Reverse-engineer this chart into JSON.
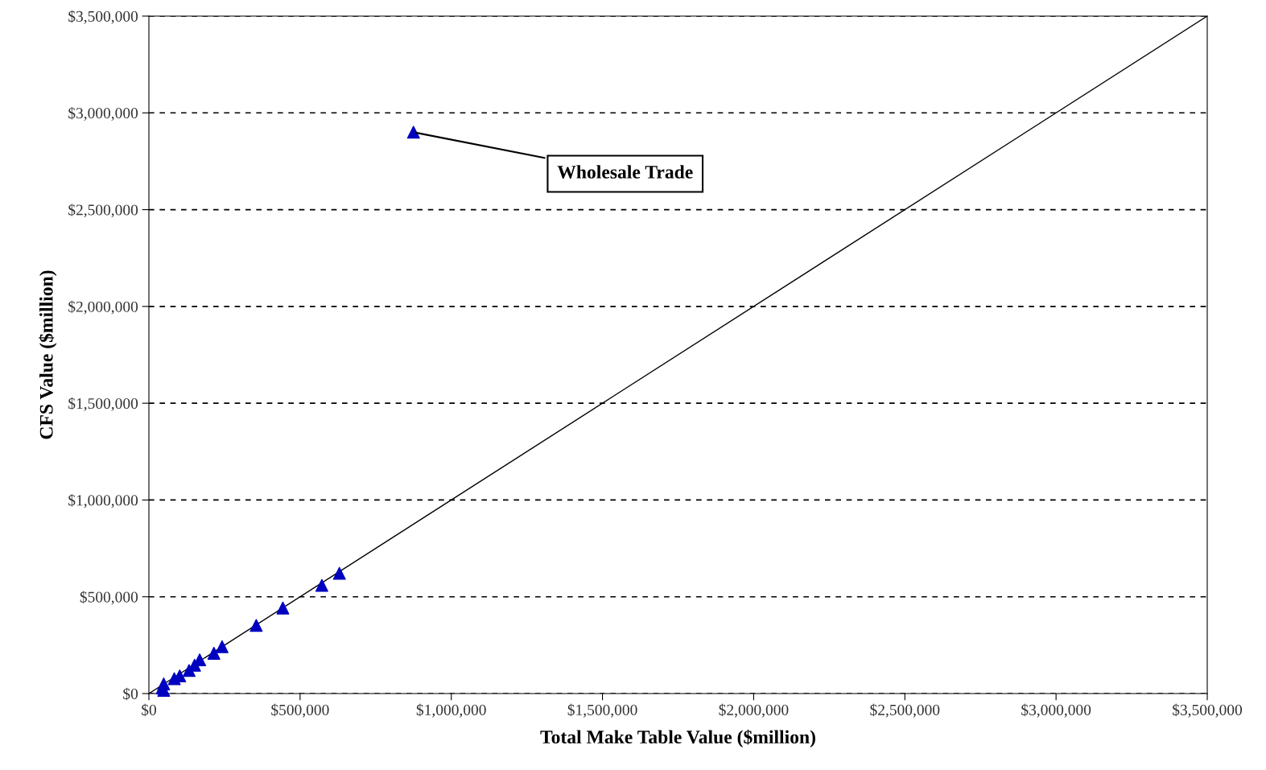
{
  "chart_data": {
    "type": "scatter",
    "xlabel": "Total Make Table Value ($million)",
    "ylabel": "CFS Value ($million)",
    "series": [
      {
        "color": "#0000c0",
        "marker": "triangle",
        "x": [
          875000,
          630000,
          572000,
          443000,
          355000,
          242000,
          215000,
          168000,
          151000,
          133000,
          102000,
          84000,
          49000,
          44000,
          49000
        ],
        "values": [
          2900000,
          621000,
          559000,
          442000,
          352000,
          242000,
          208000,
          174000,
          146000,
          119000,
          91000,
          77000,
          50000,
          29000,
          17000
        ]
      },
      {
        "type": "line",
        "color": "#000000",
        "x": [
          0,
          3500000
        ],
        "values": [
          0,
          3500000
        ]
      }
    ],
    "xlim": [
      0,
      3500000
    ],
    "ylim": [
      0,
      3500000
    ],
    "xticks": [
      {
        "value": 0,
        "label": "$0"
      },
      {
        "value": 500000,
        "label": "$500,000"
      },
      {
        "value": 1000000,
        "label": "$1,000,000"
      },
      {
        "value": 1500000,
        "label": "$1,500,000"
      },
      {
        "value": 2000000,
        "label": "$2,000,000"
      },
      {
        "value": 2500000,
        "label": "$2,500,000"
      },
      {
        "value": 3000000,
        "label": "$3,000,000"
      },
      {
        "value": 3500000,
        "label": "$3,500,000"
      }
    ],
    "yticks": [
      {
        "value": 0,
        "label": "$0"
      },
      {
        "value": 500000,
        "label": "$500,000"
      },
      {
        "value": 1000000,
        "label": "$1,000,000"
      },
      {
        "value": 1500000,
        "label": "$1,500,000"
      },
      {
        "value": 2000000,
        "label": "$2,000,000"
      },
      {
        "value": 2500000,
        "label": "$2,500,000"
      },
      {
        "value": 3000000,
        "label": "$3,000,000"
      },
      {
        "value": 3500000,
        "label": "$3,500,000"
      }
    ],
    "grid": "y",
    "annotations": [
      {
        "text": "Wholesale Trade",
        "x": 875000,
        "y": 2900000
      }
    ]
  }
}
